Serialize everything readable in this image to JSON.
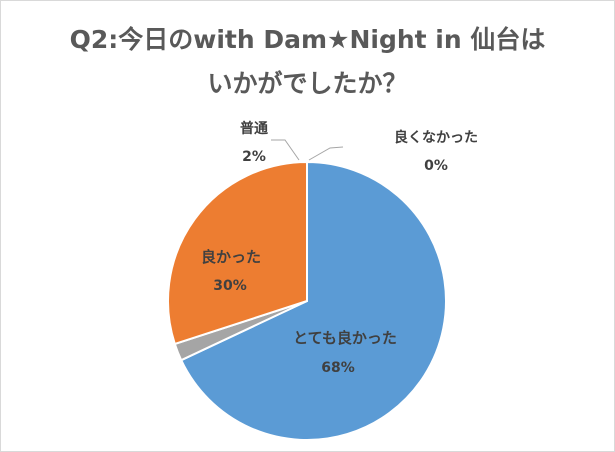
{
  "chart_data": {
    "type": "pie",
    "title_lines": [
      "Q2:今日のwith Dam★Night in 仙台は",
      "いかがでしたか？"
    ],
    "slices": [
      {
        "label": "とても良かった",
        "value": 68,
        "value_label": "68%",
        "color": "#5b9bd5"
      },
      {
        "label": "普通",
        "value": 2,
        "value_label": "2%",
        "color": "#a5a5a5"
      },
      {
        "label": "良かった",
        "value": 30,
        "value_label": "30%",
        "color": "#ed7d31"
      },
      {
        "label": "良くなかった",
        "value": 0,
        "value_label": "0%",
        "color": "#ffc000"
      }
    ],
    "legend": "none",
    "data_labels": true
  }
}
